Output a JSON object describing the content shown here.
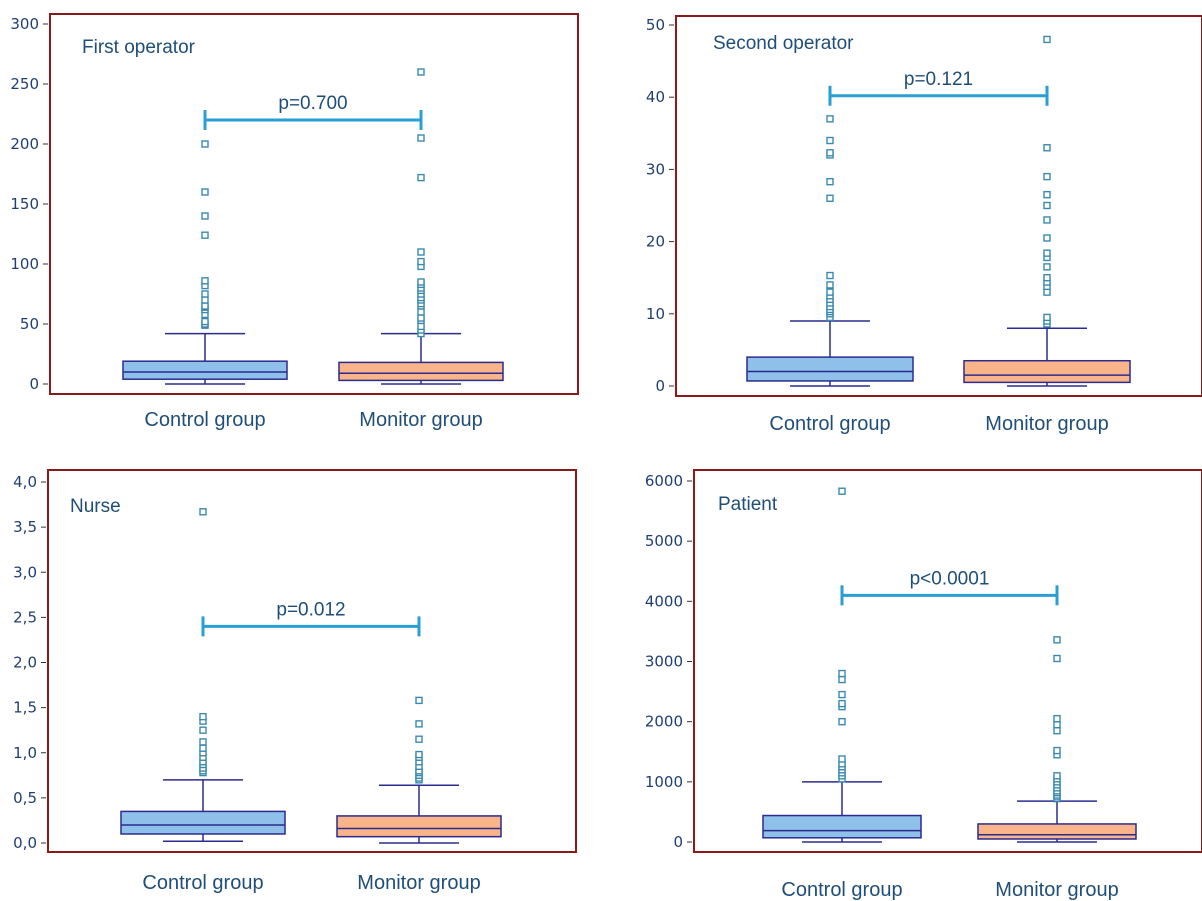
{
  "colors": {
    "frame": "#8b1a1a",
    "box_line": "#2b2b8f",
    "control_fill": "#8fc0ea",
    "monitor_fill": "#f9b48a",
    "outlier": "#3a8ab0",
    "pbar": "#2a9fd6"
  },
  "chart_data": [
    {
      "type": "box",
      "title": "First operator",
      "categories": [
        "Control group",
        "Monitor group"
      ],
      "ylim": [
        0,
        300
      ],
      "yticks": [
        0,
        50,
        100,
        150,
        200,
        250,
        300
      ],
      "ytick_labels": [
        "0",
        "50",
        "100",
        "150",
        "200",
        "250",
        "300"
      ],
      "p_value": "p=0.700",
      "p_level": 220,
      "boxes": [
        {
          "name": "Control group",
          "min": 0,
          "q1": 4,
          "median": 10,
          "q3": 19,
          "max": 42,
          "outliers": [
            49,
            50,
            52,
            58,
            62,
            64,
            65,
            70,
            75,
            82,
            86,
            124,
            140,
            160,
            200
          ]
        },
        {
          "name": "Monitor group",
          "min": 0,
          "q1": 3,
          "median": 9,
          "q3": 18,
          "max": 42,
          "outliers": [
            42,
            45,
            48,
            53,
            55,
            60,
            65,
            67,
            70,
            72,
            75,
            78,
            80,
            83,
            85,
            98,
            102,
            110,
            172,
            205,
            260
          ]
        }
      ]
    },
    {
      "type": "box",
      "title": "Second operator",
      "categories": [
        "Control group",
        "Monitor group"
      ],
      "ylim": [
        0,
        50
      ],
      "yticks": [
        0,
        10,
        20,
        30,
        40,
        50
      ],
      "ytick_labels": [
        "0",
        "10",
        "20",
        "30",
        "40",
        "50"
      ],
      "p_value": "p=0.121",
      "p_level": 40.2,
      "boxes": [
        {
          "name": "Control group",
          "min": 0,
          "q1": 0.7,
          "median": 2,
          "q3": 4,
          "max": 9,
          "outliers": [
            9.5,
            10,
            10.3,
            10.6,
            11,
            11.5,
            12,
            12.5,
            13,
            14,
            15.3,
            26,
            28.3,
            32,
            32.3,
            34,
            37
          ]
        },
        {
          "name": "Monitor group",
          "min": 0,
          "q1": 0.5,
          "median": 1.5,
          "q3": 3.5,
          "max": 8,
          "outliers": [
            8.6,
            9,
            9.5,
            13,
            13.8,
            14.4,
            15,
            16.5,
            17.8,
            18.4,
            20.5,
            23,
            25,
            26.5,
            29,
            33,
            48
          ]
        }
      ]
    },
    {
      "type": "box",
      "title": "Nurse",
      "categories": [
        "Control group",
        "Monitor group"
      ],
      "ylim": [
        0,
        4
      ],
      "yticks": [
        0,
        0.5,
        1,
        1.5,
        2,
        2.5,
        3,
        3.5,
        4
      ],
      "ytick_labels": [
        "0,0",
        "0,5",
        "1,0",
        "1,5",
        "2,0",
        "2,5",
        "3,0",
        "3,5",
        "4,0"
      ],
      "p_value": "p=0.012",
      "p_level": 2.4,
      "boxes": [
        {
          "name": "Control group",
          "min": 0.02,
          "q1": 0.1,
          "median": 0.2,
          "q3": 0.35,
          "max": 0.7,
          "outliers": [
            0.78,
            0.8,
            0.83,
            0.87,
            0.9,
            0.95,
            1.0,
            1.05,
            1.12,
            1.25,
            1.35,
            1.4,
            3.67
          ]
        },
        {
          "name": "Monitor group",
          "min": 0,
          "q1": 0.07,
          "median": 0.16,
          "q3": 0.3,
          "max": 0.64,
          "outliers": [
            0.7,
            0.72,
            0.75,
            0.78,
            0.8,
            0.85,
            0.9,
            0.95,
            0.98,
            1.15,
            1.32,
            1.58
          ]
        }
      ]
    },
    {
      "type": "box",
      "title": "Patient",
      "categories": [
        "Control group",
        "Monitor group"
      ],
      "ylim": [
        0,
        6000
      ],
      "yticks": [
        0,
        1000,
        2000,
        3000,
        4000,
        5000,
        6000
      ],
      "ytick_labels": [
        "0",
        "1000",
        "2000",
        "3000",
        "4000",
        "5000",
        "6000"
      ],
      "p_value": "p<0.0001",
      "p_level": 4100,
      "boxes": [
        {
          "name": "Control group",
          "min": 0,
          "q1": 70,
          "median": 190,
          "q3": 440,
          "max": 1000,
          "outliers": [
            1050,
            1100,
            1150,
            1200,
            1250,
            1300,
            1380,
            2000,
            2250,
            2300,
            2450,
            2700,
            2800,
            5830
          ]
        },
        {
          "name": "Monitor group",
          "min": 0,
          "q1": 50,
          "median": 120,
          "q3": 300,
          "max": 680,
          "outliers": [
            720,
            750,
            780,
            820,
            850,
            900,
            950,
            1000,
            1050,
            1100,
            1450,
            1520,
            1850,
            1950,
            2050,
            3050,
            3360
          ]
        }
      ]
    }
  ]
}
